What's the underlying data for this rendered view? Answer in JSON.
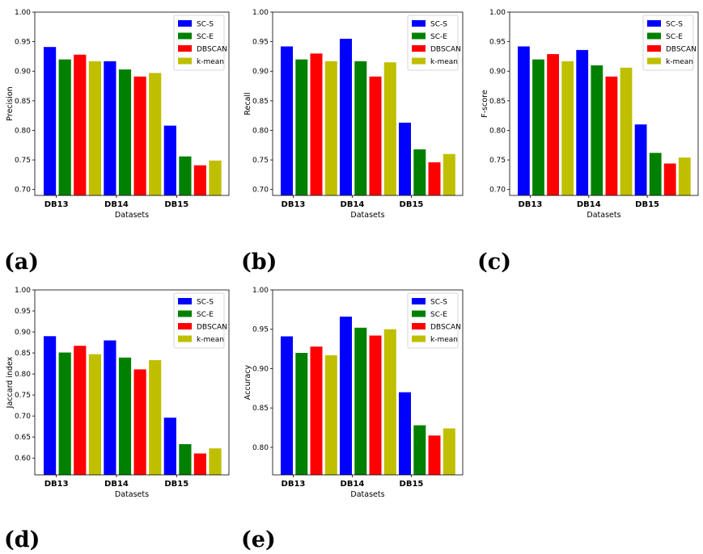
{
  "chart_data": [
    {
      "type": "bar",
      "panel_label": "(a)",
      "title": "",
      "xlabel": "Datasets",
      "ylabel": "Precision",
      "categories": [
        "DB13",
        "DB14",
        "DB15"
      ],
      "ylim": [
        0.69,
        1.0
      ],
      "yticks": [
        0.7,
        0.75,
        0.8,
        0.85,
        0.9,
        0.95,
        1.0
      ],
      "ytick_labels": [
        "0.70",
        "0.75",
        "0.80",
        "0.85",
        "0.90",
        "0.95",
        "1.00"
      ],
      "legend_position": "top-right",
      "series": [
        {
          "name": "SC-S",
          "color": "#0000ff",
          "values": [
            0.941,
            0.917,
            0.808
          ]
        },
        {
          "name": "SC-E",
          "color": "#008000",
          "values": [
            0.92,
            0.903,
            0.756
          ]
        },
        {
          "name": "DBSCAN",
          "color": "#ff0000",
          "values": [
            0.928,
            0.891,
            0.741
          ]
        },
        {
          "name": "k-mean",
          "color": "#bfbf00",
          "values": [
            0.917,
            0.897,
            0.749
          ]
        }
      ]
    },
    {
      "type": "bar",
      "panel_label": "(b)",
      "title": "",
      "xlabel": "Datasets",
      "ylabel": "Recall",
      "categories": [
        "DB13",
        "DB14",
        "DB15"
      ],
      "ylim": [
        0.69,
        1.0
      ],
      "yticks": [
        0.7,
        0.75,
        0.8,
        0.85,
        0.9,
        0.95,
        1.0
      ],
      "ytick_labels": [
        "0.70",
        "0.75",
        "0.80",
        "0.85",
        "0.90",
        "0.95",
        "1.00"
      ],
      "legend_position": "top-right",
      "series": [
        {
          "name": "SC-S",
          "color": "#0000ff",
          "values": [
            0.942,
            0.955,
            0.813
          ]
        },
        {
          "name": "SC-E",
          "color": "#008000",
          "values": [
            0.92,
            0.917,
            0.768
          ]
        },
        {
          "name": "DBSCAN",
          "color": "#ff0000",
          "values": [
            0.93,
            0.891,
            0.746
          ]
        },
        {
          "name": "k-mean",
          "color": "#bfbf00",
          "values": [
            0.917,
            0.915,
            0.76
          ]
        }
      ]
    },
    {
      "type": "bar",
      "panel_label": "(c)",
      "title": "",
      "xlabel": "Datasets",
      "ylabel": "F-score",
      "categories": [
        "DB13",
        "DB14",
        "DB15"
      ],
      "ylim": [
        0.69,
        1.0
      ],
      "yticks": [
        0.7,
        0.75,
        0.8,
        0.85,
        0.9,
        0.95,
        1.0
      ],
      "ytick_labels": [
        "0.70",
        "0.75",
        "0.80",
        "0.85",
        "0.90",
        "0.95",
        "1.00"
      ],
      "legend_position": "top-right",
      "series": [
        {
          "name": "SC-S",
          "color": "#0000ff",
          "values": [
            0.942,
            0.936,
            0.81
          ]
        },
        {
          "name": "SC-E",
          "color": "#008000",
          "values": [
            0.92,
            0.91,
            0.762
          ]
        },
        {
          "name": "DBSCAN",
          "color": "#ff0000",
          "values": [
            0.929,
            0.891,
            0.744
          ]
        },
        {
          "name": "k-mean",
          "color": "#bfbf00",
          "values": [
            0.917,
            0.906,
            0.754
          ]
        }
      ]
    },
    {
      "type": "bar",
      "panel_label": "(d)",
      "title": "",
      "xlabel": "Datasets",
      "ylabel": "Jaccard index",
      "categories": [
        "DB13",
        "DB14",
        "DB15"
      ],
      "ylim": [
        0.56,
        1.0
      ],
      "yticks": [
        0.6,
        0.65,
        0.7,
        0.75,
        0.8,
        0.85,
        0.9,
        0.95,
        1.0
      ],
      "ytick_labels": [
        "0.60",
        "0.65",
        "0.70",
        "0.75",
        "0.80",
        "0.85",
        "0.90",
        "0.95",
        "1.00"
      ],
      "legend_position": "top-right",
      "series": [
        {
          "name": "SC-S",
          "color": "#0000ff",
          "values": [
            0.89,
            0.88,
            0.696
          ]
        },
        {
          "name": "SC-E",
          "color": "#008000",
          "values": [
            0.851,
            0.839,
            0.633
          ]
        },
        {
          "name": "DBSCAN",
          "color": "#ff0000",
          "values": [
            0.867,
            0.811,
            0.611
          ]
        },
        {
          "name": "k-mean",
          "color": "#bfbf00",
          "values": [
            0.847,
            0.833,
            0.623
          ]
        }
      ]
    },
    {
      "type": "bar",
      "panel_label": "(e)",
      "title": "",
      "xlabel": "Datasets",
      "ylabel": "Accuracy",
      "categories": [
        "DB13",
        "DB14",
        "DB15"
      ],
      "ylim": [
        0.765,
        1.0
      ],
      "yticks": [
        0.8,
        0.85,
        0.9,
        0.95,
        1.0
      ],
      "ytick_labels": [
        "0.80",
        "0.85",
        "0.90",
        "0.95",
        "1.00"
      ],
      "legend_position": "top-right",
      "series": [
        {
          "name": "SC-S",
          "color": "#0000ff",
          "values": [
            0.941,
            0.966,
            0.87
          ]
        },
        {
          "name": "SC-E",
          "color": "#008000",
          "values": [
            0.92,
            0.952,
            0.828
          ]
        },
        {
          "name": "DBSCAN",
          "color": "#ff0000",
          "values": [
            0.928,
            0.942,
            0.815
          ]
        },
        {
          "name": "k-mean",
          "color": "#bfbf00",
          "values": [
            0.917,
            0.95,
            0.824
          ]
        }
      ]
    }
  ]
}
